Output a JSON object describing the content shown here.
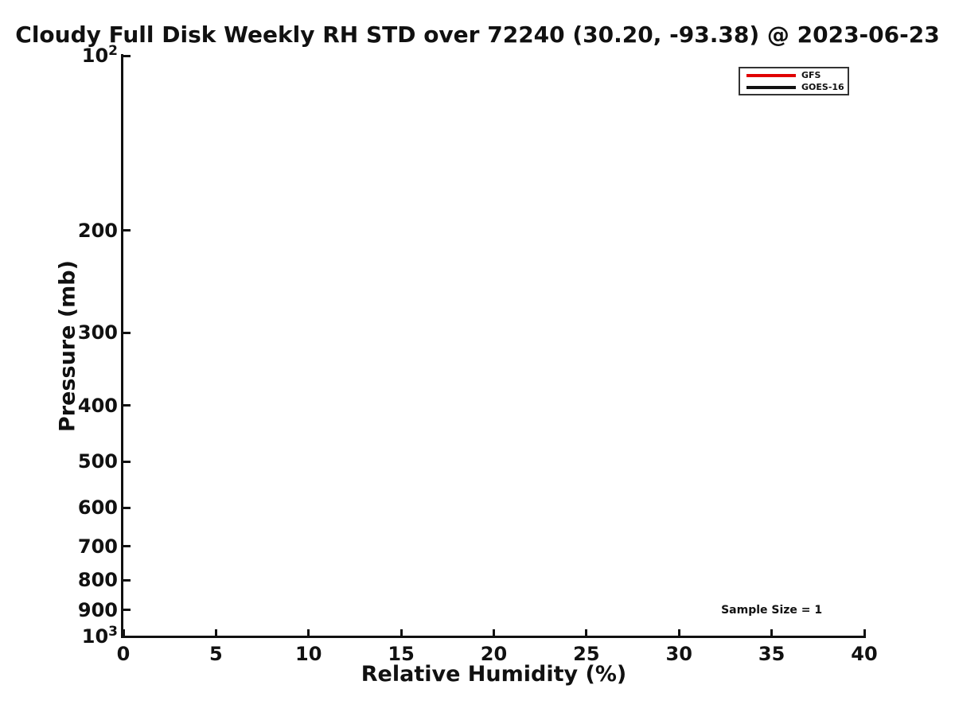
{
  "chart_data": {
    "type": "line",
    "title": "Cloudy Full Disk Weekly RH STD over 72240 (30.20, -93.38) @ 2023-06-23",
    "xlabel": "Relative Humidity (%)",
    "ylabel": "Pressure (mb)",
    "xlim": [
      0,
      40
    ],
    "xticks": [
      0,
      5,
      10,
      15,
      20,
      25,
      30,
      35,
      40
    ],
    "xtick_labels": [
      "0",
      "5",
      "10",
      "15",
      "20",
      "25",
      "30",
      "35",
      "40"
    ],
    "yscale": "log",
    "y_axis_direction": "pressure-increasing-downward",
    "ylim": [
      100,
      1000
    ],
    "yticks": [
      100,
      200,
      300,
      400,
      500,
      600,
      700,
      800,
      900,
      1000
    ],
    "ytick_labels": [
      "10^2",
      "200",
      "300",
      "400",
      "500",
      "600",
      "700",
      "800",
      "900",
      "10^3"
    ],
    "grid": false,
    "axis_color": "#111111",
    "background_color": "#ffffff",
    "legend": {
      "position": "top-right",
      "entries": [
        {
          "label": "GFS",
          "color": "#e00000"
        },
        {
          "label": "GOES-16",
          "color": "#111111"
        }
      ]
    },
    "series": [
      {
        "name": "GFS",
        "color": "#e00000",
        "x": [],
        "y": []
      },
      {
        "name": "GOES-16",
        "color": "#111111",
        "x": [],
        "y": []
      }
    ],
    "annotations": [
      {
        "text": "Sample Size = 1",
        "x": 35,
        "y": 900
      }
    ]
  }
}
